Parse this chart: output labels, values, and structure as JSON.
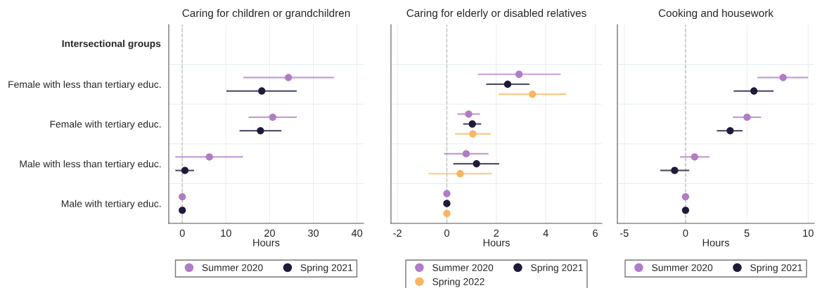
{
  "chart_data": [
    {
      "type": "scatter",
      "orientation": "horizontal",
      "title": "Caring for children or grandchildren",
      "xlabel": "Hours",
      "annotations": [
        "Intersectional groups"
      ],
      "categories": [
        "Female with less than tertiary educ.",
        "Female with tertiary educ.",
        "Male with less than tertiary educ.",
        "Male with tertiary educ."
      ],
      "series": [
        {
          "name": "Summer 2020",
          "color": "#b07cc6",
          "values": [
            24.3,
            20.7,
            6.2,
            0
          ],
          "errors": [
            [
              14.0,
              34.7
            ],
            [
              15.2,
              26.2
            ],
            [
              -1.6,
              13.9
            ],
            null
          ]
        },
        {
          "name": "Spring 2021",
          "color": "#1f1a3a",
          "values": [
            18.2,
            17.9,
            0.6,
            0
          ],
          "errors": [
            [
              10.1,
              26.2
            ],
            [
              13.1,
              22.7
            ],
            [
              -1.6,
              2.7
            ],
            null
          ]
        }
      ],
      "xlim": [
        -3.1,
        41.5
      ],
      "xticks": [
        0,
        10,
        20,
        30,
        40
      ],
      "grid": true,
      "legend": "bottom",
      "marker": "circle",
      "ref_lines": [
        {
          "axis": "x",
          "value": 0,
          "color": "#c0c0c0",
          "line_style": "dashed"
        }
      ]
    },
    {
      "type": "scatter",
      "orientation": "horizontal",
      "title": "Caring for elderly or disabled relatives",
      "xlabel": "Hours",
      "categories": [
        null,
        null,
        null,
        null
      ],
      "series": [
        {
          "name": "Summer 2020",
          "color": "#b07cc6",
          "values": [
            2.92,
            0.88,
            0.78,
            0
          ],
          "errors": [
            [
              1.25,
              4.6
            ],
            [
              0.43,
              1.34
            ],
            [
              -0.12,
              1.68
            ],
            null
          ]
        },
        {
          "name": "Spring 2021",
          "color": "#1f1a3a",
          "values": [
            2.46,
            1.03,
            1.2,
            0
          ],
          "errors": [
            [
              1.59,
              3.34
            ],
            [
              0.66,
              1.39
            ],
            [
              0.26,
              2.12
            ],
            null
          ]
        },
        {
          "name": "Spring 2022",
          "color": "#f9b55f",
          "values": [
            3.46,
            1.05,
            0.54,
            0
          ],
          "errors": [
            [
              2.09,
              4.83
            ],
            [
              0.33,
              1.78
            ],
            [
              -0.74,
              1.82
            ],
            null
          ]
        }
      ],
      "xlim": [
        -2.26,
        6.27
      ],
      "xticks": [
        -2,
        0,
        2,
        4,
        6
      ],
      "grid": true,
      "legend": "bottom",
      "marker": "circle",
      "ref_lines": [
        {
          "axis": "x",
          "value": 0,
          "color": "#c0c0c0",
          "line_style": "dashed"
        }
      ]
    },
    {
      "type": "scatter",
      "orientation": "horizontal",
      "title": "Cooking and housework",
      "xlabel": "Hours",
      "categories": [
        null,
        null,
        null,
        null
      ],
      "series": [
        {
          "name": "Summer 2020",
          "color": "#b07cc6",
          "values": [
            7.96,
            5.02,
            0.74,
            0
          ],
          "errors": [
            [
              5.87,
              10.0
            ],
            [
              3.85,
              6.17
            ],
            [
              -0.45,
              1.95
            ],
            null
          ]
        },
        {
          "name": "Spring 2021",
          "color": "#1f1a3a",
          "values": [
            5.58,
            3.64,
            -0.89,
            0
          ],
          "errors": [
            [
              3.92,
              7.19
            ],
            [
              2.55,
              4.65
            ],
            [
              -2.06,
              0.3
            ],
            null
          ]
        }
      ],
      "xlim": [
        -5.56,
        10.5
      ],
      "xticks": [
        -5,
        0,
        5,
        10
      ],
      "grid": true,
      "legend": "bottom",
      "marker": "circle",
      "ref_lines": [
        {
          "axis": "x",
          "value": 0,
          "color": "#c0c0c0",
          "line_style": "dashed"
        }
      ]
    }
  ]
}
